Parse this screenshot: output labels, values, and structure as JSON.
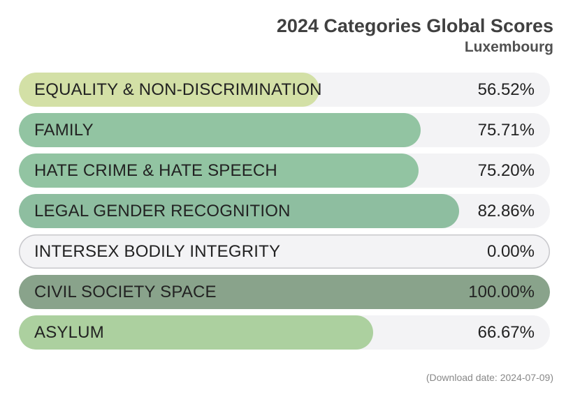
{
  "header": {
    "title": "2024 Categories Global Scores",
    "subtitle": "Luxembourg"
  },
  "chart_data": {
    "type": "bar",
    "orientation": "horizontal",
    "title": "2024 Categories Global Scores",
    "subtitle": "Luxembourg",
    "xlim": [
      0,
      100
    ],
    "categories": [
      "EQUALITY & NON-DISCRIMINATION",
      "FAMILY",
      "HATE CRIME & HATE SPEECH",
      "LEGAL GENDER RECOGNITION",
      "INTERSEX BODILY INTEGRITY",
      "CIVIL SOCIETY SPACE",
      "ASYLUM"
    ],
    "values": [
      56.52,
      75.71,
      75.2,
      82.86,
      0.0,
      100.0,
      66.67
    ],
    "value_labels": [
      "56.52%",
      "75.71%",
      "75.20%",
      "82.86%",
      "0.00%",
      "100.00%",
      "66.67%"
    ],
    "colors": [
      "#d3e0a6",
      "#92c4a2",
      "#92c4a2",
      "#8ebea0",
      "#f3f3f5",
      "#89a38b",
      "#acd09f"
    ]
  },
  "footer": {
    "download_date": "(Download date: 2024-07-09)"
  }
}
